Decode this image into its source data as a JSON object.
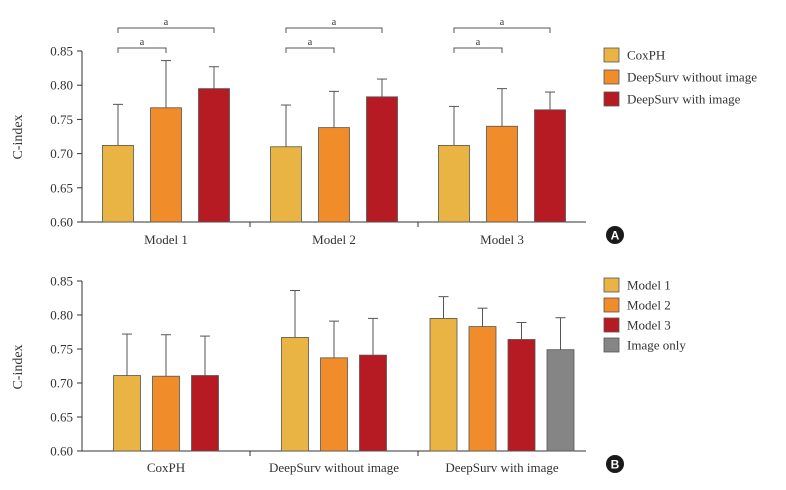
{
  "chart_data": [
    {
      "type": "bar",
      "panel_label": "A",
      "ylabel": "C-index",
      "ylim": [
        0.6,
        0.85
      ],
      "yticks": [
        "0.60",
        "0.65",
        "0.70",
        "0.75",
        "0.80",
        "0.85"
      ],
      "categories": [
        "Model 1",
        "Model 2",
        "Model 3"
      ],
      "series": [
        {
          "name": "CoxPH",
          "color": "#e9b443",
          "values": [
            0.712,
            0.71,
            0.712
          ],
          "err_upper": [
            0.772,
            0.771,
            0.769
          ]
        },
        {
          "name": "DeepSurv without image",
          "color": "#f08c29",
          "values": [
            0.767,
            0.738,
            0.74
          ],
          "err_upper": [
            0.836,
            0.791,
            0.795
          ]
        },
        {
          "name": "DeepSurv with image",
          "color": "#b61a22",
          "values": [
            0.795,
            0.783,
            0.764
          ],
          "err_upper": [
            0.827,
            0.809,
            0.79
          ]
        }
      ],
      "significance_label": "a",
      "significance_brackets": [
        {
          "category": 0,
          "from_series": 0,
          "to_series": 2,
          "level": 2
        },
        {
          "category": 0,
          "from_series": 0,
          "to_series": 1,
          "level": 1
        },
        {
          "category": 1,
          "from_series": 0,
          "to_series": 2,
          "level": 2
        },
        {
          "category": 1,
          "from_series": 0,
          "to_series": 1,
          "level": 1
        },
        {
          "category": 2,
          "from_series": 0,
          "to_series": 2,
          "level": 2
        },
        {
          "category": 2,
          "from_series": 0,
          "to_series": 1,
          "level": 1
        }
      ],
      "legend_position": "right",
      "grid": false
    },
    {
      "type": "bar",
      "panel_label": "B",
      "ylabel": "C-index",
      "ylim": [
        0.6,
        0.85
      ],
      "yticks": [
        "0.60",
        "0.65",
        "0.70",
        "0.75",
        "0.80",
        "0.85"
      ],
      "categories": [
        "CoxPH",
        "DeepSurv without image",
        "DeepSurv with image"
      ],
      "series": [
        {
          "name": "Model 1",
          "color": "#e9b443",
          "values": [
            0.711,
            0.767,
            0.795
          ],
          "err_upper": [
            0.772,
            0.836,
            0.827
          ]
        },
        {
          "name": "Model 2",
          "color": "#f08c29",
          "values": [
            0.71,
            0.737,
            0.783
          ],
          "err_upper": [
            0.771,
            0.791,
            0.81
          ]
        },
        {
          "name": "Model 3",
          "color": "#b61a22",
          "values": [
            0.711,
            0.741,
            0.764
          ],
          "err_upper": [
            0.769,
            0.795,
            0.789
          ]
        },
        {
          "name": "Image only",
          "color": "#858585",
          "values": [
            null,
            null,
            0.749
          ],
          "err_upper": [
            null,
            null,
            0.796
          ]
        }
      ],
      "legend_position": "right",
      "grid": false
    }
  ]
}
